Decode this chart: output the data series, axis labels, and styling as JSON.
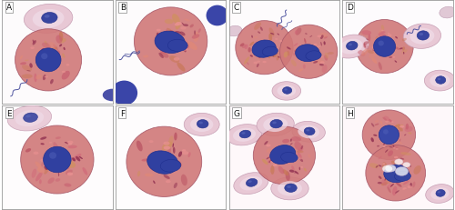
{
  "figsize": [
    5.0,
    2.32
  ],
  "dpi": 100,
  "background_color": "#ffffff",
  "panel_bg": "#f8f4f6",
  "label_fontsize": 6.5,
  "label_color": "#111111",
  "label_bg": "#ffffff",
  "border_color": "#999999",
  "border_lw": 0.6,
  "panels": [
    "A",
    "B",
    "C",
    "D",
    "E",
    "F",
    "G",
    "H"
  ],
  "panel_layout": {
    "rows": 2,
    "cols": 4
  },
  "rbc_fill": "#e8c8d8",
  "rbc_edge": "#c8a0b8",
  "rbc_nucleus": "#4a4a9a",
  "het_granule1": "#c87080",
  "het_granule2": "#d08860",
  "het_nucleus": "#3040a0",
  "het_edge": "#a05060",
  "projection_color": "#5060a0",
  "white_bg": "#ffffff",
  "near_white": "#f9f5f7"
}
